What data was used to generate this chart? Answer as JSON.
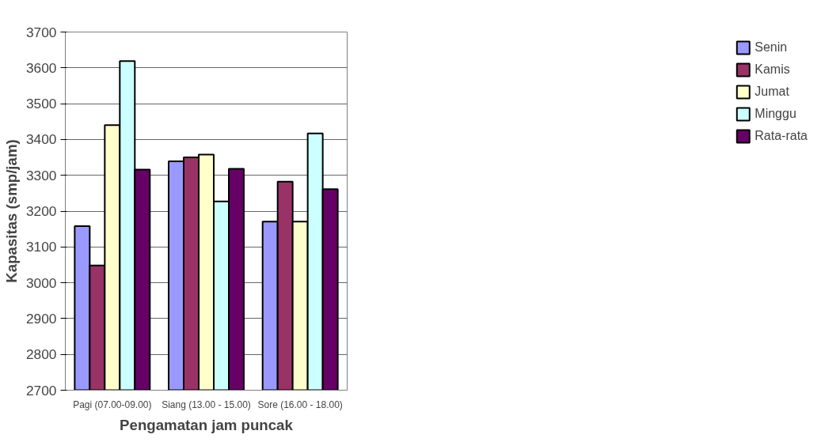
{
  "chart_data": {
    "type": "bar",
    "xlabel": "Pengamatan jam puncak",
    "ylabel": "Kapasitas (smp/jam)",
    "categories": [
      "Pagi (07.00-09.00)",
      "Siang (13.00 - 15.00)",
      "Sore (16.00 - 18.00)"
    ],
    "series": [
      {
        "name": "Senin",
        "color": "#9999ff",
        "values": [
          3158,
          3339,
          3171
        ]
      },
      {
        "name": "Kamis",
        "color": "#993366",
        "values": [
          3048,
          3350,
          3282
        ]
      },
      {
        "name": "Jumat",
        "color": "#ffffcc",
        "values": [
          3440,
          3358,
          3171
        ]
      },
      {
        "name": "Minggu",
        "color": "#ccffff",
        "values": [
          3619,
          3227,
          3417
        ]
      },
      {
        "name": "Rata-rata",
        "color": "#660066",
        "values": [
          3316,
          3318,
          3261
        ]
      }
    ],
    "ylim": [
      2700,
      3700
    ],
    "yticks": [
      2700,
      2800,
      2900,
      3000,
      3100,
      3200,
      3300,
      3400,
      3500,
      3600,
      3700
    ],
    "grid": "y",
    "legend": "right"
  }
}
